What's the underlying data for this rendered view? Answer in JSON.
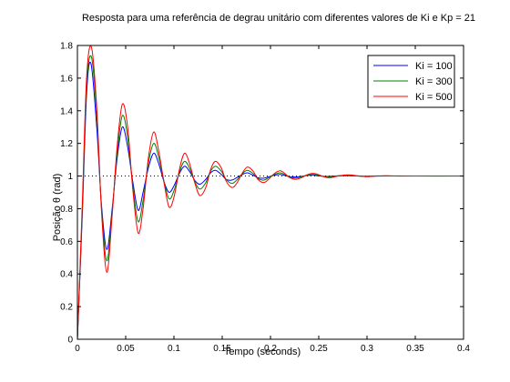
{
  "chart_data": {
    "type": "line",
    "title": "Resposta para uma referência de degrau unitário com diferentes valores de Ki e Kp = 21",
    "xlabel": "Tempo (seconds)",
    "ylabel": "Posição θ (rad)",
    "xlim": [
      0,
      0.4
    ],
    "ylim": [
      0,
      1.8
    ],
    "xticks": [
      "0",
      "0.05",
      "0.1",
      "0.15",
      "0.2",
      "0.25",
      "0.3",
      "0.35",
      "0.4"
    ],
    "yticks": [
      "0",
      "0.2",
      "0.4",
      "0.6",
      "0.8",
      "1",
      "1.2",
      "1.4",
      "1.6",
      "1.8"
    ],
    "grid": false,
    "reference_line": {
      "y": 1,
      "style": "dotted",
      "color": "#000000"
    },
    "legend_position": "top-right",
    "series": [
      {
        "name": "Ki = 100",
        "color": "#0000ff",
        "points": [
          [
            0,
            0
          ],
          [
            0.005,
            0.75
          ],
          [
            0.0095,
            1.5
          ],
          [
            0.014,
            1.69
          ],
          [
            0.02,
            1.3
          ],
          [
            0.025,
            0.82
          ],
          [
            0.0305,
            0.55
          ],
          [
            0.036,
            0.8
          ],
          [
            0.041,
            1.1
          ],
          [
            0.0465,
            1.3
          ],
          [
            0.052,
            1.18
          ],
          [
            0.0575,
            0.96
          ],
          [
            0.063,
            0.79
          ],
          [
            0.068,
            0.9
          ],
          [
            0.0735,
            1.05
          ],
          [
            0.079,
            1.14
          ],
          [
            0.084,
            1.08
          ],
          [
            0.09,
            0.96
          ],
          [
            0.095,
            0.9
          ],
          [
            0.1,
            0.94
          ],
          [
            0.106,
            1.02
          ],
          [
            0.111,
            1.06
          ],
          [
            0.116,
            1.03
          ],
          [
            0.122,
            0.97
          ],
          [
            0.127,
            0.95
          ],
          [
            0.133,
            0.98
          ],
          [
            0.138,
            1.02
          ],
          [
            0.143,
            1.035
          ],
          [
            0.149,
            1.01
          ],
          [
            0.154,
            0.98
          ],
          [
            0.16,
            0.975
          ],
          [
            0.165,
            0.99
          ],
          [
            0.171,
            1.01
          ],
          [
            0.176,
            1.02
          ],
          [
            0.182,
            1.005
          ],
          [
            0.187,
            0.99
          ],
          [
            0.193,
            0.987
          ],
          [
            0.198,
            0.995
          ],
          [
            0.204,
            1.005
          ],
          [
            0.21,
            1.01
          ],
          [
            0.215,
            1.003
          ],
          [
            0.22,
            0.996
          ],
          [
            0.226,
            0.994
          ],
          [
            0.232,
            0.998
          ],
          [
            0.238,
            1.003
          ],
          [
            0.244,
            1.005
          ],
          [
            0.25,
            1.001
          ],
          [
            0.256,
            0.998
          ],
          [
            0.262,
            0.998
          ],
          [
            0.27,
            1.001
          ],
          [
            0.28,
            1.002
          ],
          [
            0.29,
            1.0
          ],
          [
            0.3,
            0.999
          ],
          [
            0.32,
            1.0
          ],
          [
            0.35,
            1.0
          ],
          [
            0.4,
            1.0
          ]
        ]
      },
      {
        "name": "Ki = 300",
        "color": "#008000",
        "points": [
          [
            0,
            0
          ],
          [
            0.005,
            0.78
          ],
          [
            0.0095,
            1.55
          ],
          [
            0.0145,
            1.73
          ],
          [
            0.02,
            1.38
          ],
          [
            0.025,
            0.8
          ],
          [
            0.0305,
            0.48
          ],
          [
            0.036,
            0.78
          ],
          [
            0.041,
            1.13
          ],
          [
            0.0465,
            1.37
          ],
          [
            0.052,
            1.24
          ],
          [
            0.0575,
            0.93
          ],
          [
            0.063,
            0.72
          ],
          [
            0.068,
            0.85
          ],
          [
            0.0735,
            1.08
          ],
          [
            0.079,
            1.2
          ],
          [
            0.084,
            1.12
          ],
          [
            0.09,
            0.96
          ],
          [
            0.095,
            0.86
          ],
          [
            0.1,
            0.91
          ],
          [
            0.106,
            1.03
          ],
          [
            0.111,
            1.09
          ],
          [
            0.116,
            1.05
          ],
          [
            0.122,
            0.96
          ],
          [
            0.127,
            0.92
          ],
          [
            0.133,
            0.96
          ],
          [
            0.138,
            1.03
          ],
          [
            0.143,
            1.06
          ],
          [
            0.149,
            1.03
          ],
          [
            0.154,
            0.98
          ],
          [
            0.16,
            0.955
          ],
          [
            0.165,
            0.975
          ],
          [
            0.171,
            1.015
          ],
          [
            0.176,
            1.035
          ],
          [
            0.182,
            1.015
          ],
          [
            0.187,
            0.985
          ],
          [
            0.193,
            0.975
          ],
          [
            0.198,
            0.99
          ],
          [
            0.204,
            1.01
          ],
          [
            0.21,
            1.02
          ],
          [
            0.215,
            1.008
          ],
          [
            0.22,
            0.993
          ],
          [
            0.226,
            0.988
          ],
          [
            0.232,
            0.995
          ],
          [
            0.238,
            1.005
          ],
          [
            0.244,
            1.01
          ],
          [
            0.25,
            1.004
          ],
          [
            0.256,
            0.996
          ],
          [
            0.262,
            0.994
          ],
          [
            0.27,
            1.002
          ],
          [
            0.28,
            1.004
          ],
          [
            0.29,
            1.0
          ],
          [
            0.3,
            0.998
          ],
          [
            0.31,
            1.001
          ],
          [
            0.32,
            1.001
          ],
          [
            0.35,
            1.0
          ],
          [
            0.4,
            1.0
          ]
        ]
      },
      {
        "name": "Ki = 500",
        "color": "#ff0000",
        "points": [
          [
            0,
            0
          ],
          [
            0.005,
            0.82
          ],
          [
            0.0095,
            1.6
          ],
          [
            0.0145,
            1.79
          ],
          [
            0.02,
            1.42
          ],
          [
            0.025,
            0.78
          ],
          [
            0.0305,
            0.41
          ],
          [
            0.036,
            0.76
          ],
          [
            0.041,
            1.17
          ],
          [
            0.0465,
            1.44
          ],
          [
            0.052,
            1.3
          ],
          [
            0.0575,
            0.91
          ],
          [
            0.063,
            0.65
          ],
          [
            0.068,
            0.8
          ],
          [
            0.0735,
            1.11
          ],
          [
            0.079,
            1.27
          ],
          [
            0.084,
            1.16
          ],
          [
            0.09,
            0.95
          ],
          [
            0.095,
            0.81
          ],
          [
            0.1,
            0.87
          ],
          [
            0.106,
            1.05
          ],
          [
            0.111,
            1.14
          ],
          [
            0.116,
            1.08
          ],
          [
            0.122,
            0.95
          ],
          [
            0.127,
            0.88
          ],
          [
            0.133,
            0.93
          ],
          [
            0.138,
            1.04
          ],
          [
            0.143,
            1.09
          ],
          [
            0.149,
            1.05
          ],
          [
            0.154,
            0.97
          ],
          [
            0.16,
            0.93
          ],
          [
            0.165,
            0.955
          ],
          [
            0.171,
            1.02
          ],
          [
            0.176,
            1.055
          ],
          [
            0.182,
            1.03
          ],
          [
            0.187,
            0.98
          ],
          [
            0.193,
            0.96
          ],
          [
            0.198,
            0.98
          ],
          [
            0.204,
            1.015
          ],
          [
            0.21,
            1.032
          ],
          [
            0.215,
            1.015
          ],
          [
            0.22,
            0.99
          ],
          [
            0.226,
            0.98
          ],
          [
            0.232,
            0.99
          ],
          [
            0.238,
            1.008
          ],
          [
            0.244,
            1.016
          ],
          [
            0.25,
            1.008
          ],
          [
            0.256,
            0.994
          ],
          [
            0.262,
            0.99
          ],
          [
            0.27,
            1.0
          ],
          [
            0.28,
            1.007
          ],
          [
            0.29,
            1.002
          ],
          [
            0.3,
            0.996
          ],
          [
            0.31,
            1.0
          ],
          [
            0.32,
            1.002
          ],
          [
            0.33,
            1.0
          ],
          [
            0.35,
            1.0
          ],
          [
            0.4,
            1.0
          ]
        ]
      }
    ]
  }
}
